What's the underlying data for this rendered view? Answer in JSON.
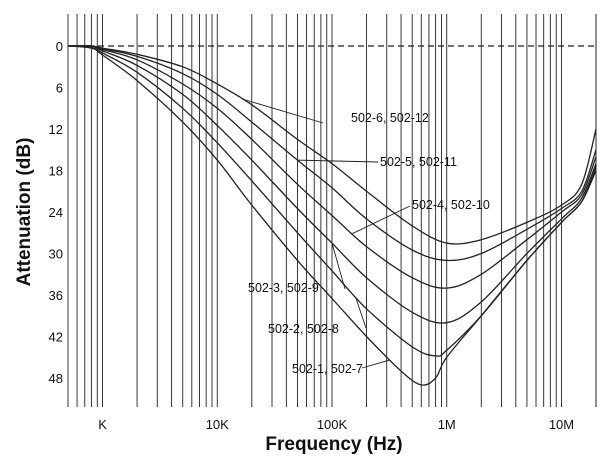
{
  "chart_data": {
    "type": "line",
    "title": "",
    "xlabel": "Frequency (Hz)",
    "ylabel": "Attenuation (dB)",
    "x_scale": "log",
    "xlim": [
      500,
      20000000
    ],
    "ylim": [
      0,
      50
    ],
    "y_inverted": true,
    "grid": "vertical",
    "x_ticks": [
      {
        "value": 1000,
        "label": "K"
      },
      {
        "value": 10000,
        "label": "10K"
      },
      {
        "value": 100000,
        "label": "100K"
      },
      {
        "value": 1000000,
        "label": "1M"
      },
      {
        "value": 10000000,
        "label": "10M"
      }
    ],
    "y_ticks": [
      0,
      6,
      12,
      18,
      24,
      30,
      36,
      42,
      48
    ],
    "reference_line": {
      "y": 0,
      "style": "dashed"
    },
    "series": [
      {
        "name": "502-6, 502-12",
        "points": [
          [
            500,
            0
          ],
          [
            800,
            0
          ],
          [
            1000,
            0.3
          ],
          [
            2000,
            1.2
          ],
          [
            5000,
            3
          ],
          [
            10000,
            5.5
          ],
          [
            20000,
            8.5
          ],
          [
            50000,
            13.5
          ],
          [
            100000,
            17
          ],
          [
            200000,
            21
          ],
          [
            500000,
            26
          ],
          [
            1000000,
            28.5
          ],
          [
            2000000,
            28
          ],
          [
            5000000,
            25.5
          ],
          [
            10000000,
            23
          ],
          [
            15000000,
            20
          ],
          [
            20000000,
            12
          ]
        ]
      },
      {
        "name": "502-5, 502-11",
        "points": [
          [
            500,
            0
          ],
          [
            800,
            0
          ],
          [
            1000,
            0.4
          ],
          [
            2000,
            1.5
          ],
          [
            5000,
            4
          ],
          [
            10000,
            7
          ],
          [
            20000,
            11
          ],
          [
            50000,
            16.5
          ],
          [
            100000,
            20.5
          ],
          [
            200000,
            25
          ],
          [
            500000,
            29.5
          ],
          [
            1000000,
            31
          ],
          [
            2000000,
            30
          ],
          [
            5000000,
            26.5
          ],
          [
            10000000,
            23.5
          ],
          [
            15000000,
            21
          ],
          [
            20000000,
            15
          ]
        ]
      },
      {
        "name": "502-4, 502-10",
        "points": [
          [
            500,
            0
          ],
          [
            800,
            0
          ],
          [
            1000,
            0.5
          ],
          [
            2000,
            2
          ],
          [
            5000,
            5.5
          ],
          [
            10000,
            9
          ],
          [
            20000,
            13.5
          ],
          [
            50000,
            20
          ],
          [
            100000,
            24.5
          ],
          [
            200000,
            29
          ],
          [
            500000,
            33.5
          ],
          [
            1000000,
            35
          ],
          [
            2000000,
            33
          ],
          [
            5000000,
            28
          ],
          [
            10000000,
            24
          ],
          [
            15000000,
            21.5
          ],
          [
            20000000,
            16
          ]
        ]
      },
      {
        "name": "502-3, 502-9",
        "points": [
          [
            500,
            0
          ],
          [
            800,
            0
          ],
          [
            1000,
            0.7
          ],
          [
            2000,
            2.8
          ],
          [
            5000,
            7
          ],
          [
            10000,
            11.5
          ],
          [
            20000,
            16.5
          ],
          [
            50000,
            23.5
          ],
          [
            100000,
            28.5
          ],
          [
            200000,
            33.5
          ],
          [
            500000,
            38.5
          ],
          [
            1000000,
            40
          ],
          [
            2000000,
            37
          ],
          [
            5000000,
            30
          ],
          [
            10000000,
            25
          ],
          [
            15000000,
            22
          ],
          [
            20000000,
            17
          ]
        ]
      },
      {
        "name": "502-2, 502-8",
        "points": [
          [
            500,
            0
          ],
          [
            800,
            0.2
          ],
          [
            1000,
            1
          ],
          [
            2000,
            3.8
          ],
          [
            5000,
            9
          ],
          [
            10000,
            14
          ],
          [
            20000,
            19.5
          ],
          [
            50000,
            27
          ],
          [
            100000,
            32.5
          ],
          [
            200000,
            38
          ],
          [
            500000,
            43.5
          ],
          [
            800000,
            44.8
          ],
          [
            1000000,
            44
          ],
          [
            2000000,
            39
          ],
          [
            5000000,
            31
          ],
          [
            10000000,
            25.5
          ],
          [
            15000000,
            22.5
          ],
          [
            20000000,
            17.5
          ]
        ]
      },
      {
        "name": "502-1, 502-7",
        "points": [
          [
            500,
            0
          ],
          [
            800,
            0.3
          ],
          [
            1000,
            1.3
          ],
          [
            2000,
            5
          ],
          [
            5000,
            11
          ],
          [
            10000,
            16.5
          ],
          [
            20000,
            23
          ],
          [
            50000,
            31
          ],
          [
            100000,
            36.5
          ],
          [
            200000,
            42
          ],
          [
            400000,
            47
          ],
          [
            600000,
            49
          ],
          [
            800000,
            48
          ],
          [
            1000000,
            45
          ],
          [
            2000000,
            39
          ],
          [
            5000000,
            31
          ],
          [
            10000000,
            25.5
          ],
          [
            15000000,
            22.5
          ],
          [
            20000000,
            18
          ]
        ]
      }
    ]
  }
}
